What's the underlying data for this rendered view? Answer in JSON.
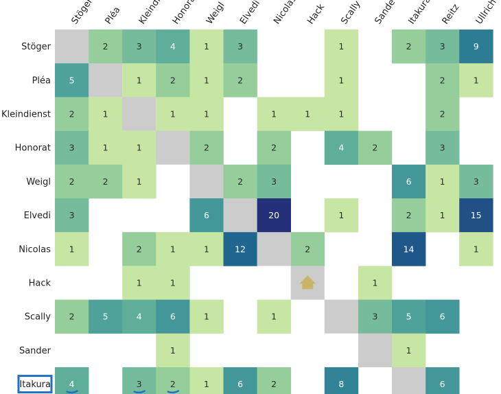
{
  "chart_data": {
    "type": "heatmap",
    "title": "",
    "xlabel": "",
    "ylabel": "",
    "x_categories": [
      "Stöger",
      "Pléa",
      "Kleindienst",
      "Honorat",
      "Weigl",
      "Elvedi",
      "Nicolas",
      "Hack",
      "Scally",
      "Sander",
      "Itakura",
      "Reitz",
      "Ullrich"
    ],
    "y_categories": [
      "Stöger",
      "Pléa",
      "Kleindienst",
      "Honorat",
      "Weigl",
      "Elvedi",
      "Nicolas",
      "Hack",
      "Scally",
      "Sander",
      "Itakura"
    ],
    "x_tick_labels_shown": [
      "Stöger",
      "Pléa",
      "Kleindic",
      "Honorat",
      "Weigl",
      "Elvedi",
      "Nicolas",
      "Hack",
      "Scally",
      "Sande",
      "Itakura",
      "Reitz",
      "Ullrich"
    ],
    "diagonal_color": "#cccccc",
    "empty_color": "#ffffff",
    "colorscale": [
      "#c7e6a4",
      "#a3d59a",
      "#7ec19c",
      "#56a99a",
      "#358a97",
      "#1f6690",
      "#24317a"
    ],
    "values": [
      [
        null,
        2,
        3,
        4,
        1,
        3,
        0,
        0,
        1,
        0,
        2,
        3,
        9
      ],
      [
        5,
        null,
        1,
        2,
        1,
        2,
        0,
        0,
        1,
        0,
        0,
        2,
        1
      ],
      [
        2,
        1,
        null,
        1,
        1,
        0,
        1,
        1,
        1,
        0,
        0,
        2,
        0
      ],
      [
        3,
        1,
        1,
        null,
        2,
        0,
        2,
        0,
        4,
        2,
        0,
        3,
        0
      ],
      [
        2,
        2,
        1,
        0,
        null,
        2,
        3,
        0,
        0,
        0,
        6,
        1,
        3
      ],
      [
        3,
        0,
        0,
        0,
        6,
        null,
        20,
        0,
        1,
        0,
        2,
        1,
        15
      ],
      [
        1,
        0,
        2,
        1,
        1,
        12,
        null,
        2,
        0,
        0,
        14,
        0,
        1
      ],
      [
        0,
        0,
        1,
        1,
        0,
        0,
        0,
        null,
        0,
        1,
        0,
        0,
        0
      ],
      [
        2,
        5,
        4,
        6,
        1,
        0,
        1,
        0,
        null,
        3,
        5,
        6,
        0
      ],
      [
        0,
        0,
        0,
        1,
        0,
        0,
        0,
        0,
        0,
        null,
        1,
        0,
        0
      ],
      [
        4,
        0,
        3,
        2,
        1,
        6,
        2,
        0,
        8,
        0,
        null,
        6,
        0
      ]
    ],
    "highlighted_row_label": "Itakura",
    "underlined_cells_in_highlighted_row": [
      "Stöger",
      "Kleindienst",
      "Honorat"
    ],
    "highlight_color": "#1f6fc5"
  }
}
